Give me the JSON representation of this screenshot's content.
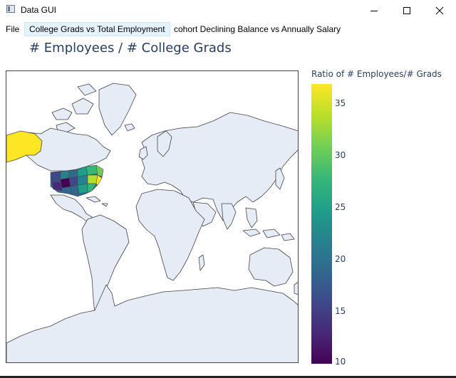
{
  "window": {
    "title": "Data GUI",
    "app_icon": "window-app-icon",
    "controls": [
      "minimize-icon",
      "maximize-icon",
      "close-icon"
    ]
  },
  "menu": {
    "file": "File",
    "tab_active": "College Grads vs Total Employment",
    "tab_other": "cohort Declining Balance vs Annually Salary"
  },
  "chart": {
    "title": "# Employees / # College Grads",
    "colorbar_title": "Ratio of # Employees/# Grads",
    "colorbar_ticks": [
      "35",
      "30",
      "25",
      "20",
      "15",
      "10"
    ],
    "colorbar_range": [
      10,
      36.8
    ],
    "colorscale": "viridis",
    "land_color": "#e5ecf6",
    "highlight_color": "#fde725"
  }
}
